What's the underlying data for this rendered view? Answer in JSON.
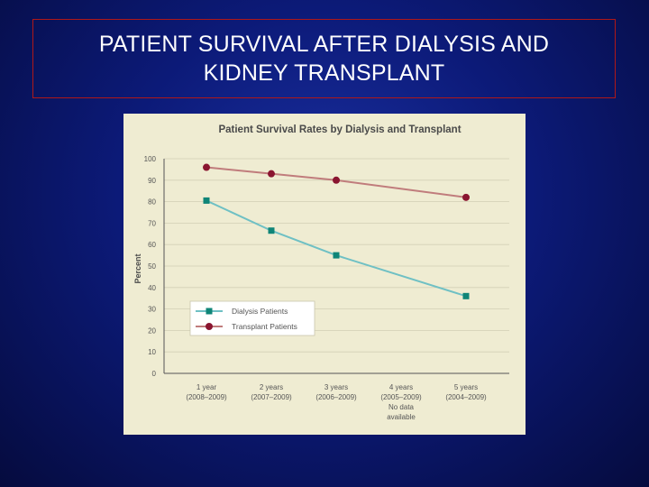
{
  "slide_title": {
    "line1": "PATIENT SURVIVAL AFTER DIALYSIS AND",
    "line2": "KIDNEY TRANSPLANT"
  },
  "chart_data": {
    "type": "line",
    "title": "Patient Survival Rates by Dialysis and Transplant",
    "xlabel": "",
    "ylabel": "Percent",
    "ylim": [
      0,
      100
    ],
    "yticks": [
      0,
      10,
      20,
      30,
      40,
      50,
      60,
      70,
      80,
      90,
      100
    ],
    "grid": true,
    "legend_position": "bottom-left",
    "categories": [
      {
        "label": "1 year",
        "sub": [
          "(2008–2009)"
        ]
      },
      {
        "label": "2 years",
        "sub": [
          "(2007–2009)"
        ]
      },
      {
        "label": "3 years",
        "sub": [
          "(2006–2009)"
        ]
      },
      {
        "label": "4 years",
        "sub": [
          "(2005–2009)",
          "No data",
          "available"
        ]
      },
      {
        "label": "5 years",
        "sub": [
          "(2004–2009)"
        ]
      }
    ],
    "series": [
      {
        "name": "Dialysis Patients",
        "marker": "square",
        "color": "#6fc0c4",
        "marker_color": "#0f8577",
        "values": [
          80.5,
          66.5,
          55,
          null,
          36
        ]
      },
      {
        "name": "Transplant Patients",
        "marker": "circle",
        "color": "#c07c7c",
        "marker_color": "#8a1530",
        "values": [
          96,
          93,
          90,
          null,
          82
        ]
      }
    ]
  }
}
